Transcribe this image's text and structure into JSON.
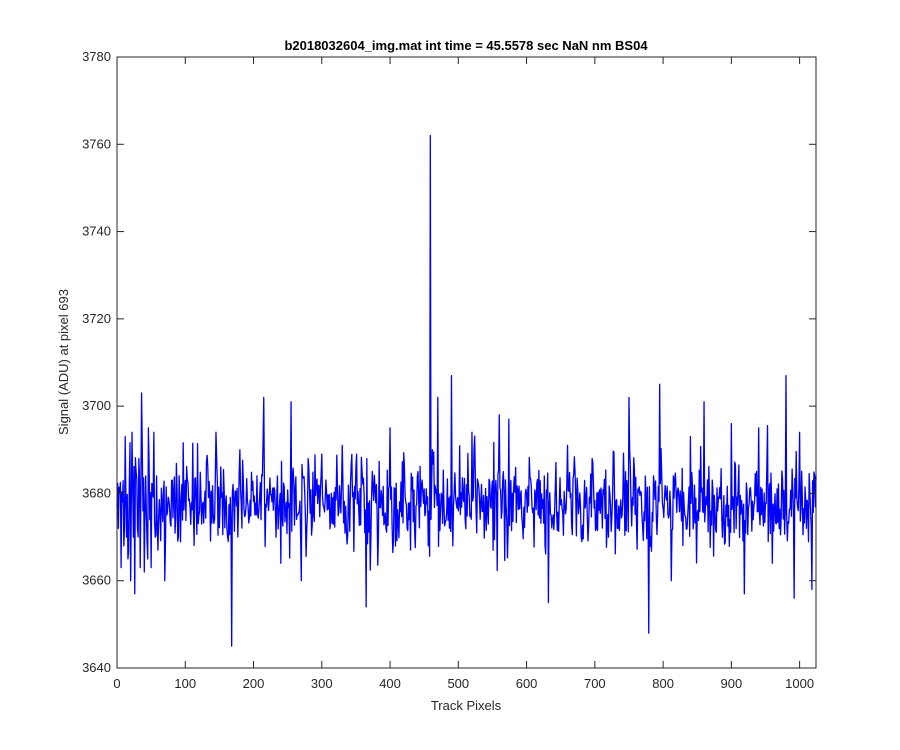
{
  "figure": {
    "background": "#ffffff"
  },
  "chart_data": {
    "type": "line",
    "title": "b2018032604_img.mat int time = 45.5578 sec  NaN nm BS04",
    "xlabel": "Track Pixels",
    "ylabel": "Signal (ADU) at pixel 693",
    "xlim": [
      0,
      1024
    ],
    "ylim": [
      3640,
      3780
    ],
    "xticks": [
      0,
      100,
      200,
      300,
      400,
      500,
      600,
      700,
      800,
      900,
      1000
    ],
    "yticks": [
      3640,
      3660,
      3680,
      3700,
      3720,
      3740,
      3760,
      3780
    ],
    "grid": false,
    "box": true,
    "noise": {
      "n_points": 1024,
      "baseline": 3678,
      "typical_range": [
        3655,
        3707
      ],
      "seed": 693
    },
    "series": [
      {
        "color": "#0000ff",
        "points": [
          [
            0,
            3677
          ],
          [
            2,
            3672
          ],
          [
            4,
            3680
          ],
          [
            6,
            3663
          ],
          [
            8,
            3678
          ],
          [
            10,
            3668
          ],
          [
            12,
            3693
          ],
          [
            14,
            3670
          ],
          [
            16,
            3665
          ],
          [
            18,
            3682
          ],
          [
            20,
            3660
          ],
          [
            22,
            3694
          ],
          [
            24,
            3670
          ],
          [
            26,
            3657
          ],
          [
            28,
            3685
          ],
          [
            30,
            3672
          ],
          [
            32,
            3688
          ],
          [
            34,
            3663
          ],
          [
            36,
            3703
          ],
          [
            38,
            3676
          ],
          [
            40,
            3662
          ],
          [
            42,
            3684
          ],
          [
            44,
            3669
          ],
          [
            46,
            3695
          ],
          [
            48,
            3674
          ],
          [
            50,
            3663
          ],
          [
            52,
            3682
          ],
          [
            54,
            3694
          ],
          [
            56,
            3670
          ],
          [
            58,
            3684
          ],
          [
            60,
            3667
          ],
          [
            66,
            3678
          ],
          [
            70,
            3660
          ],
          [
            80,
            3683
          ],
          [
            100,
            3683
          ],
          [
            120,
            3675
          ],
          [
            145,
            3694
          ],
          [
            168,
            3645
          ],
          [
            180,
            3690
          ],
          [
            215,
            3702
          ],
          [
            240,
            3664
          ],
          [
            255,
            3701
          ],
          [
            270,
            3660
          ],
          [
            300,
            3689
          ],
          [
            330,
            3691
          ],
          [
            350,
            3686
          ],
          [
            365,
            3654
          ],
          [
            380,
            3682
          ],
          [
            400,
            3695
          ],
          [
            430,
            3667
          ],
          [
            450,
            3681
          ],
          [
            456,
            3668
          ],
          [
            459,
            3762
          ],
          [
            462,
            3690
          ],
          [
            470,
            3702
          ],
          [
            490,
            3707
          ],
          [
            492,
            3668
          ],
          [
            500,
            3676
          ],
          [
            520,
            3694
          ],
          [
            544,
            3673
          ],
          [
            560,
            3698
          ],
          [
            574,
            3697
          ],
          [
            600,
            3680
          ],
          [
            632,
            3655
          ],
          [
            660,
            3691
          ],
          [
            680,
            3670
          ],
          [
            696,
            3688
          ],
          [
            720,
            3670
          ],
          [
            750,
            3702
          ],
          [
            779,
            3648
          ],
          [
            795,
            3705
          ],
          [
            812,
            3660
          ],
          [
            840,
            3693
          ],
          [
            860,
            3701
          ],
          [
            880,
            3676
          ],
          [
            900,
            3696
          ],
          [
            919,
            3657
          ],
          [
            940,
            3695
          ],
          [
            960,
            3664
          ],
          [
            980,
            3707
          ],
          [
            992,
            3656
          ],
          [
            1000,
            3694
          ],
          [
            1010,
            3672
          ],
          [
            1018,
            3658
          ],
          [
            1024,
            3684
          ]
        ]
      }
    ]
  }
}
